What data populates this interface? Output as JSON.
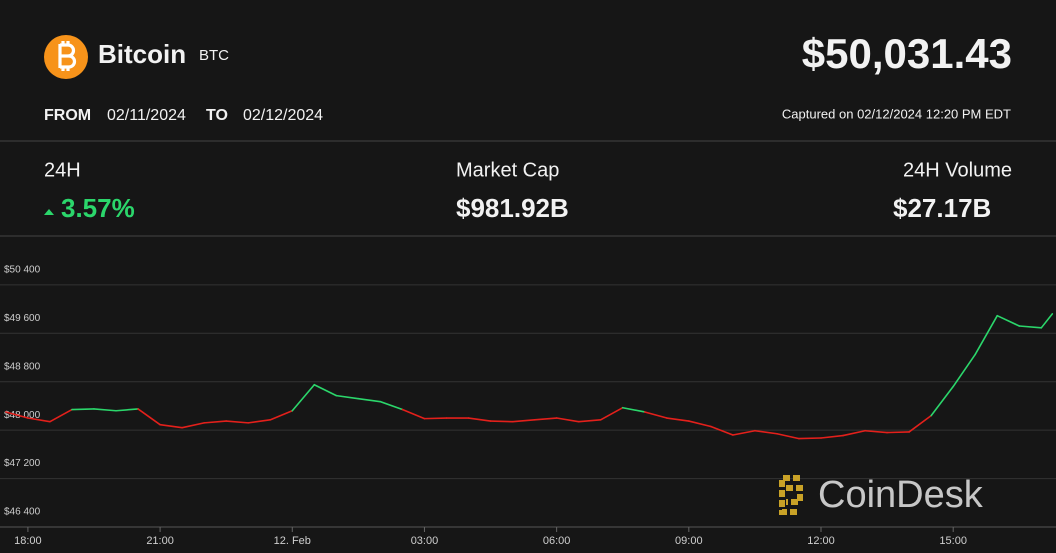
{
  "header": {
    "name": "Bitcoin",
    "symbol": "BTC",
    "price": "$50,031.43"
  },
  "range": {
    "from_label": "FROM",
    "from": "02/11/2024",
    "to_label": "TO",
    "to": "02/12/2024",
    "captured": "Captured on 02/12/2024 12:20 PM EDT"
  },
  "stats": [
    {
      "label": "24H",
      "value": "3.57%"
    },
    {
      "label": "Market Cap",
      "value": "$981.92B"
    },
    {
      "label": "24H Volume",
      "value": "$27.17B"
    }
  ],
  "chart_data": {
    "type": "line",
    "watermark": "CoinDesk",
    "grid": true,
    "color_up": "#2bd66b",
    "color_down": "#e3201b",
    "x": [
      "2024-02-11T17:30",
      "2024-02-11T18:00",
      "2024-02-11T18:30",
      "2024-02-11T19:00",
      "2024-02-11T19:30",
      "2024-02-11T20:00",
      "2024-02-11T20:30",
      "2024-02-11T21:00",
      "2024-02-11T21:30",
      "2024-02-11T22:00",
      "2024-02-11T22:30",
      "2024-02-11T23:00",
      "2024-02-11T23:30",
      "2024-02-12T00:00",
      "2024-02-12T00:30",
      "2024-02-12T01:00",
      "2024-02-12T01:30",
      "2024-02-12T02:00",
      "2024-02-12T02:30",
      "2024-02-12T03:00",
      "2024-02-12T03:30",
      "2024-02-12T04:00",
      "2024-02-12T04:30",
      "2024-02-12T05:00",
      "2024-02-12T05:30",
      "2024-02-12T06:00",
      "2024-02-12T06:30",
      "2024-02-12T07:00",
      "2024-02-12T07:30",
      "2024-02-12T08:00",
      "2024-02-12T08:30",
      "2024-02-12T09:00",
      "2024-02-12T09:30",
      "2024-02-12T10:00",
      "2024-02-12T10:30",
      "2024-02-12T11:00",
      "2024-02-12T11:30",
      "2024-02-12T12:00",
      "2024-02-12T12:30",
      "2024-02-12T13:00",
      "2024-02-12T13:30",
      "2024-02-12T14:00",
      "2024-02-12T14:30",
      "2024-02-12T15:00",
      "2024-02-12T15:30",
      "2024-02-12T16:00",
      "2024-02-12T16:30",
      "2024-02-12T17:00",
      "2024-02-12T17:15"
    ],
    "values": [
      48300,
      48200,
      48140,
      48340,
      48350,
      48320,
      48350,
      48090,
      48040,
      48120,
      48150,
      48120,
      48170,
      48320,
      48750,
      48570,
      48520,
      48470,
      48340,
      48190,
      48200,
      48200,
      48150,
      48140,
      48170,
      48200,
      48140,
      48170,
      48370,
      48300,
      48200,
      48150,
      48060,
      47920,
      47990,
      47940,
      47860,
      47870,
      47910,
      47990,
      47960,
      47970,
      48240,
      48720,
      49250,
      49890,
      49720,
      49690,
      49920
    ],
    "xlim": [
      "2024-02-11T17:22",
      "2024-02-12T17:20"
    ],
    "xticks": [
      {
        "value": "2024-02-11T18:00",
        "label": "18:00"
      },
      {
        "value": "2024-02-11T21:00",
        "label": "21:00"
      },
      {
        "value": "2024-02-12T00:00",
        "label": "12. Feb"
      },
      {
        "value": "2024-02-12T03:00",
        "label": "03:00"
      },
      {
        "value": "2024-02-12T06:00",
        "label": "06:00"
      },
      {
        "value": "2024-02-12T09:00",
        "label": "09:00"
      },
      {
        "value": "2024-02-12T12:00",
        "label": "12:00"
      },
      {
        "value": "2024-02-12T15:00",
        "label": "15:00"
      }
    ],
    "ylim": [
      46400,
      51190
    ],
    "yticks": [
      {
        "value": 46400,
        "label": "$46 400"
      },
      {
        "value": 47200,
        "label": "$47 200"
      },
      {
        "value": 48000,
        "label": "$48 000"
      },
      {
        "value": 48800,
        "label": "$48 800"
      },
      {
        "value": 49600,
        "label": "$49 600"
      },
      {
        "value": 50400,
        "label": "$50 400"
      }
    ]
  }
}
